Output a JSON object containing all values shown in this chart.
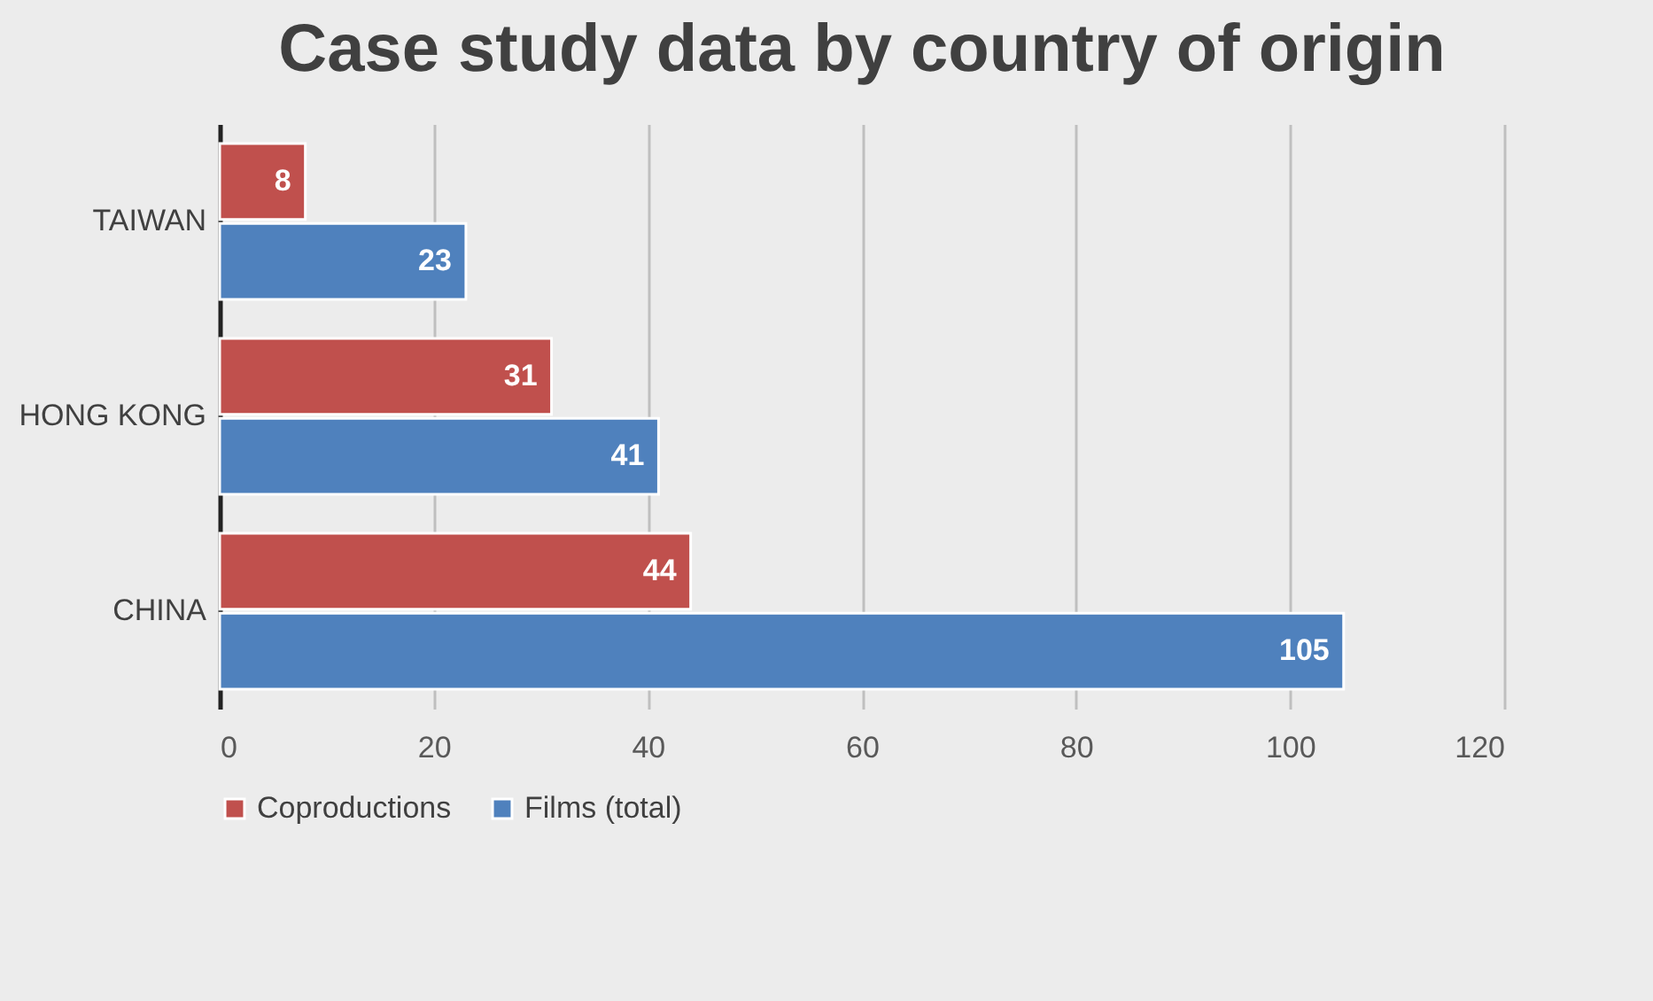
{
  "chart_data": {
    "type": "bar",
    "orientation": "horizontal",
    "title": "Case study data by country of origin",
    "categories": [
      "TAIWAN",
      "HONG KONG",
      "CHINA"
    ],
    "series": [
      {
        "name": "Coproductions",
        "color": "#c0504d",
        "values": [
          8,
          31,
          44
        ]
      },
      {
        "name": "Films (total)",
        "color": "#4f81bd",
        "values": [
          23,
          41,
          105
        ]
      }
    ],
    "xlim": [
      0,
      120
    ],
    "xticks": [
      0,
      20,
      40,
      60,
      80,
      100,
      120
    ],
    "grid": "x",
    "legend": "bottom",
    "data_labels": true
  }
}
